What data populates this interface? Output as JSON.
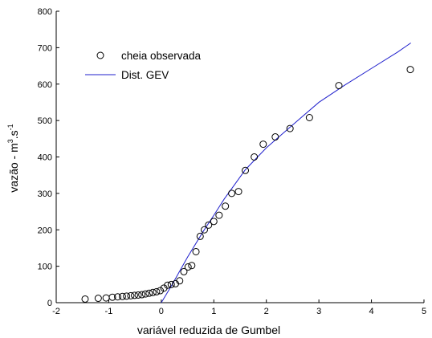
{
  "chart_data": {
    "type": "scatter",
    "xlabel": "variável reduzida de Gumbel",
    "ylabel_main": "vazão - m",
    "ylabel_sup1": "3",
    "ylabel_mid": ".s",
    "ylabel_sup2": "-1",
    "xlim": [
      -2,
      5
    ],
    "ylim": [
      0,
      800
    ],
    "xticks": [
      -2,
      -1,
      0,
      1,
      2,
      3,
      4,
      5
    ],
    "yticks": [
      0,
      100,
      200,
      300,
      400,
      500,
      600,
      700,
      800
    ],
    "grid": false,
    "legend_position": "top-left",
    "colors": {
      "fit_line": "#1f1fcc",
      "markers": "#000000"
    },
    "series": [
      {
        "name": "cheia observada",
        "style": "open-circle-markers",
        "x": [
          -1.45,
          -1.2,
          -1.05,
          -0.93,
          -0.83,
          -0.74,
          -0.66,
          -0.58,
          -0.51,
          -0.44,
          -0.37,
          -0.3,
          -0.23,
          -0.16,
          -0.09,
          -0.02,
          0.05,
          0.12,
          0.19,
          0.27,
          0.35,
          0.43,
          0.51,
          0.58,
          0.66,
          0.74,
          0.82,
          0.9,
          1.0,
          1.1,
          1.22,
          1.34,
          1.47,
          1.6,
          1.77,
          1.94,
          2.17,
          2.45,
          2.82,
          3.38,
          4.74
        ],
        "y": [
          10,
          12,
          13,
          15,
          16,
          17,
          18,
          19,
          20,
          21,
          22,
          24,
          26,
          28,
          30,
          33,
          40,
          48,
          50,
          52,
          60,
          85,
          98,
          102,
          140,
          182,
          200,
          213,
          223,
          240,
          265,
          300,
          305,
          363,
          400,
          435,
          455,
          478,
          508,
          596,
          640
        ]
      },
      {
        "name": "Dist. GEV",
        "style": "line",
        "x": [
          0.0,
          0.2,
          0.5,
          0.8,
          1.0,
          1.2,
          1.4,
          1.6,
          2.0,
          2.5,
          3.0,
          3.5,
          4.0,
          4.5,
          4.75
        ],
        "y": [
          0,
          48,
          125,
          196,
          240,
          285,
          325,
          365,
          425,
          488,
          550,
          598,
          643,
          688,
          713
        ]
      }
    ]
  }
}
